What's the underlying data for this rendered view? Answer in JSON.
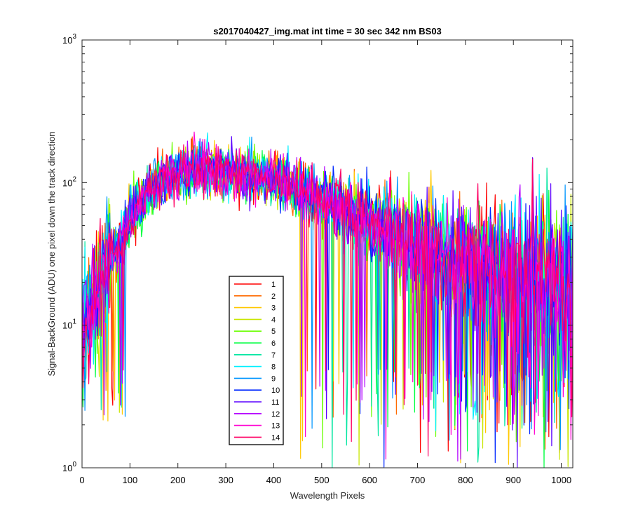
{
  "chart_data": {
    "type": "line",
    "title": "s2017040427_img.mat int time = 30 sec  342 nm BS03",
    "xlabel": "Wavelength Pixels",
    "ylabel": "Signal-BackGround (ADU) one pixel down the track direction",
    "xlim": [
      0,
      1024
    ],
    "ylim": [
      1,
      1000
    ],
    "yscale": "log",
    "grid": false,
    "legend_position": "lower-left-center",
    "x_ticks": [
      {
        "value": 0,
        "label": "0"
      },
      {
        "value": 100,
        "label": "100"
      },
      {
        "value": 200,
        "label": "200"
      },
      {
        "value": 300,
        "label": "300"
      },
      {
        "value": 400,
        "label": "400"
      },
      {
        "value": 500,
        "label": "500"
      },
      {
        "value": 600,
        "label": "600"
      },
      {
        "value": 700,
        "label": "700"
      },
      {
        "value": 800,
        "label": "800"
      },
      {
        "value": 900,
        "label": "900"
      },
      {
        "value": 1000,
        "label": "1000"
      }
    ],
    "y_ticks": [
      {
        "value": 1,
        "base": "10",
        "exp": "0"
      },
      {
        "value": 10,
        "base": "10",
        "exp": "1"
      },
      {
        "value": 100,
        "base": "10",
        "exp": "2"
      },
      {
        "value": 1000,
        "base": "10",
        "exp": "3"
      }
    ],
    "envelope": {
      "x": [
        0,
        20,
        50,
        80,
        100,
        130,
        160,
        200,
        250,
        300,
        350,
        400,
        450,
        500,
        550,
        600,
        650,
        700,
        750,
        800,
        850,
        900,
        950,
        1000,
        1024
      ],
      "y": [
        10,
        13,
        25,
        38,
        55,
        80,
        100,
        115,
        125,
        120,
        115,
        105,
        90,
        75,
        65,
        55,
        45,
        38,
        32,
        28,
        25,
        22,
        20,
        18,
        17
      ]
    },
    "spike": {
      "x": 940,
      "y": 150
    },
    "series": [
      {
        "name": "1",
        "color": "#ff0000"
      },
      {
        "name": "2",
        "color": "#ff6a00"
      },
      {
        "name": "3",
        "color": "#ffc800"
      },
      {
        "name": "4",
        "color": "#c8e600"
      },
      {
        "name": "5",
        "color": "#6aff00"
      },
      {
        "name": "6",
        "color": "#00ff40"
      },
      {
        "name": "7",
        "color": "#00e6a0"
      },
      {
        "name": "8",
        "color": "#00f0ff"
      },
      {
        "name": "9",
        "color": "#0096ff"
      },
      {
        "name": "10",
        "color": "#0028ff"
      },
      {
        "name": "11",
        "color": "#5a00ff"
      },
      {
        "name": "12",
        "color": "#b400ff"
      },
      {
        "name": "13",
        "color": "#ff00d2"
      },
      {
        "name": "14",
        "color": "#ff0064"
      }
    ]
  }
}
